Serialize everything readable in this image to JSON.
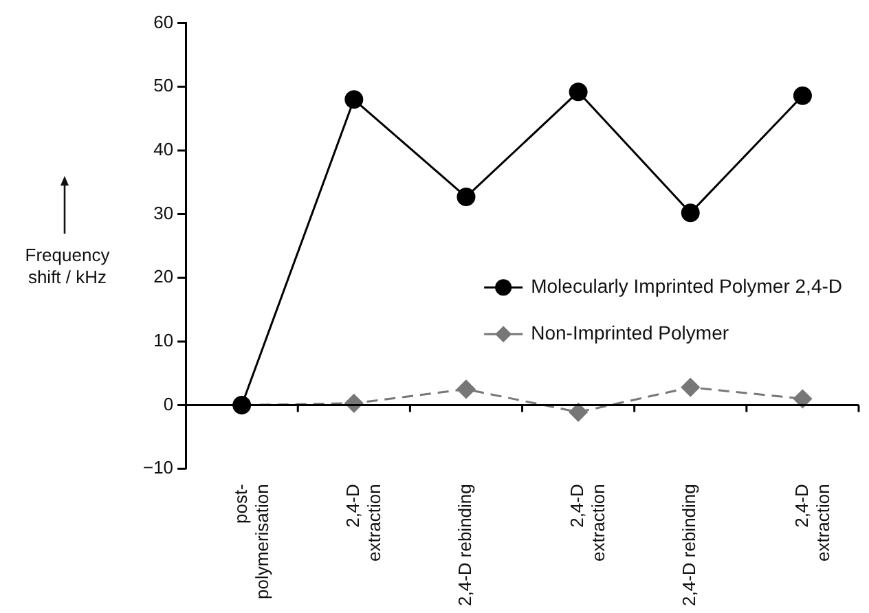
{
  "chart_data": {
    "type": "line",
    "ylabel": "Frequency shift / kHz",
    "categories": [
      "post-\npolymerisation",
      "2,4-D\nextraction",
      "2,4-D rebinding",
      "2,4-D\nextraction",
      "2,4-D rebinding",
      "2,4-D\nextraction"
    ],
    "series": [
      {
        "name": "Molecularly Imprinted Polymer 2,4-D",
        "color": "#000000",
        "values": [
          0,
          48,
          32.7,
          49.2,
          30.2,
          48.6
        ],
        "marker": "circle",
        "line_style": "solid"
      },
      {
        "name": "Non-Imprinted Polymer",
        "color": "#777777",
        "values": [
          0,
          0.3,
          2.5,
          -1.1,
          2.8,
          1.0
        ],
        "marker": "diamond",
        "line_style": "dashed"
      }
    ],
    "ylim": [
      -10,
      60
    ],
    "yticks": [
      -10,
      0,
      10,
      20,
      30,
      40,
      50,
      60
    ],
    "legend": "right"
  }
}
